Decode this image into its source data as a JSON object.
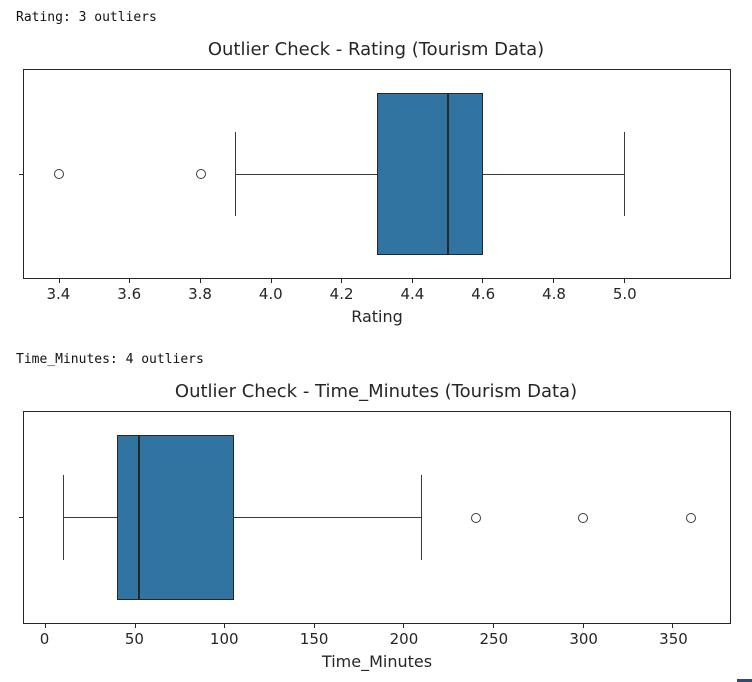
{
  "console_outputs": [
    {
      "text": "Rating: 3 outliers"
    },
    {
      "text": "Time_Minutes: 4 outliers"
    }
  ],
  "chart_data": [
    {
      "type": "boxplot",
      "orientation": "horizontal",
      "title": "Outlier Check - Rating (Tourism Data)",
      "xlabel": "Rating",
      "ylabel": "",
      "outlier_count": 3,
      "xlim": [
        3.3,
        5.3
      ],
      "xticks": [
        3.4,
        3.6,
        3.8,
        4.0,
        4.2,
        4.4,
        4.6,
        4.8,
        5.0
      ],
      "tick_labels": [
        "3.4",
        "3.6",
        "3.8",
        "4.0",
        "4.2",
        "4.4",
        "4.6",
        "4.8",
        "5.0"
      ],
      "stats": {
        "whisker_low": 3.9,
        "q1": 4.3,
        "median": 4.5,
        "q3": 4.6,
        "whisker_high": 5.0
      },
      "outliers": [
        3.4,
        3.8
      ],
      "box_color": "#3274a1",
      "line_color": "#3a3a3a",
      "grid": false,
      "legend": null
    },
    {
      "type": "boxplot",
      "orientation": "horizontal",
      "title": "Outlier Check - Time_Minutes (Tourism Data)",
      "xlabel": "Time_Minutes",
      "ylabel": "",
      "outlier_count": 4,
      "xlim": [
        -12,
        382
      ],
      "xticks": [
        0,
        50,
        100,
        150,
        200,
        250,
        300,
        350
      ],
      "tick_labels": [
        "0",
        "50",
        "100",
        "150",
        "200",
        "250",
        "300",
        "350"
      ],
      "stats": {
        "whisker_low": 10,
        "q1": 40,
        "median": 52,
        "q3": 105,
        "whisker_high": 210
      },
      "outliers": [
        240,
        300,
        360
      ],
      "box_color": "#3274a1",
      "line_color": "#3a3a3a",
      "grid": false,
      "legend": null
    }
  ],
  "misc": {
    "scrollbar_color": "#2d4a7a"
  }
}
